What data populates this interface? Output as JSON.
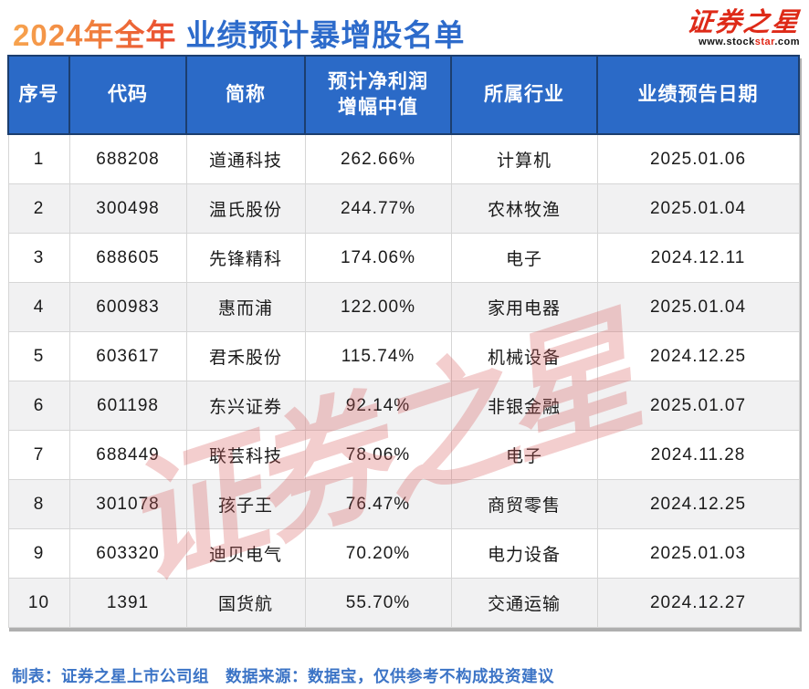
{
  "title": {
    "period": "2024年全年",
    "main": "业绩预计暴增股名单"
  },
  "logo": {
    "name": "证券之星",
    "url_prefix": "www.stock",
    "url_mid": "star",
    "url_suffix": ".com"
  },
  "watermark": "证券之星",
  "chart_data": {
    "type": "table",
    "title": "2024年全年 业绩预计暴增股名单",
    "columns": [
      "序号",
      "代码",
      "简称",
      "预计净利润\n增幅中值",
      "所属行业",
      "业绩预告日期"
    ],
    "rows": [
      [
        "1",
        "688208",
        "道通科技",
        "262.66%",
        "计算机",
        "2025.01.06"
      ],
      [
        "2",
        "300498",
        "温氏股份",
        "244.77%",
        "农林牧渔",
        "2025.01.04"
      ],
      [
        "3",
        "688605",
        "先锋精科",
        "174.06%",
        "电子",
        "2024.12.11"
      ],
      [
        "4",
        "600983",
        "惠而浦",
        "122.00%",
        "家用电器",
        "2025.01.04"
      ],
      [
        "5",
        "603617",
        "君禾股份",
        "115.74%",
        "机械设备",
        "2024.12.25"
      ],
      [
        "6",
        "601198",
        "东兴证券",
        "92.14%",
        "非银金融",
        "2025.01.07"
      ],
      [
        "7",
        "688449",
        "联芸科技",
        "78.06%",
        "电子",
        "2024.11.28"
      ],
      [
        "8",
        "301078",
        "孩子王",
        "76.47%",
        "商贸零售",
        "2024.12.25"
      ],
      [
        "9",
        "603320",
        "迪贝电气",
        "70.20%",
        "电力设备",
        "2025.01.03"
      ],
      [
        "10",
        "1391",
        "国货航",
        "55.70%",
        "交通运输",
        "2024.12.27"
      ]
    ]
  },
  "footer": {
    "text": "制表：证券之星上市公司组　数据来源：数据宝，仅供参考不构成投资建议"
  },
  "colors": {
    "header_blue": "#2B6AC7",
    "header_border": "#1C3E6E",
    "title_blue": "#2D6BCB",
    "title_orange_start": "#F7A44F",
    "title_orange_end": "#E9482F",
    "logo_red": "#DE2A18",
    "alt_row_gray": "#F1F1F2",
    "footer_blue": "#3C74C6",
    "watermark_pink": "rgba(214,92,92,0.30)"
  }
}
